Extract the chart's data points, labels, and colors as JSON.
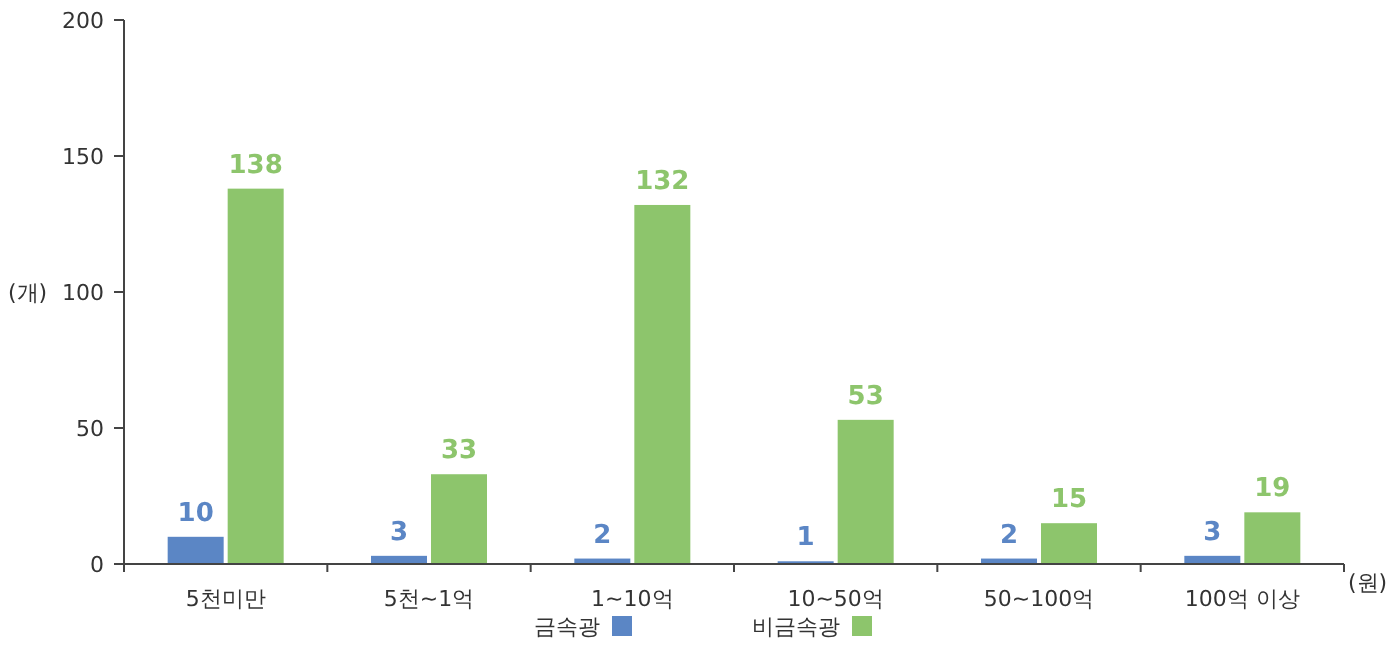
{
  "chart_data": {
    "type": "bar",
    "xlabel": "(원)",
    "ylabel": "(개)",
    "categories": [
      "5천미만",
      "5천~1억",
      "1~10억",
      "10~50억",
      "50~100억",
      "100억 이상"
    ],
    "series": [
      {
        "name": "금속광",
        "color": "#5b86c5",
        "values": [
          10,
          3,
          2,
          1,
          2,
          3
        ]
      },
      {
        "name": "비금속광",
        "color": "#8dc56c",
        "values": [
          138,
          33,
          132,
          53,
          15,
          19
        ]
      }
    ],
    "ylim": [
      0,
      200
    ],
    "yticks": [
      0,
      50,
      100,
      150,
      200
    ],
    "data_labels": true,
    "legend": "bottom",
    "grid": false
  }
}
